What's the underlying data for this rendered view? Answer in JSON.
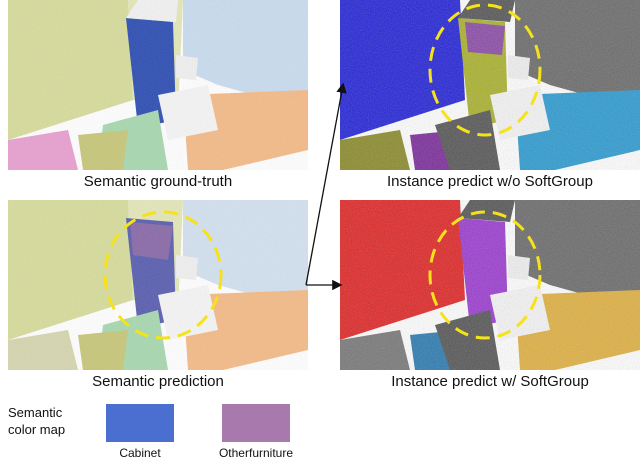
{
  "panels": [
    {
      "id": "gt",
      "caption": "Semantic ground-truth"
    },
    {
      "id": "pred",
      "caption": "Semantic prediction"
    },
    {
      "id": "inst_wo",
      "caption": "Instance predict w/o SoftGroup"
    },
    {
      "id": "inst_w",
      "caption": "Instance predict w/ SoftGroup"
    }
  ],
  "legend": {
    "title_line1": "Semantic",
    "title_line2": "color map",
    "items": [
      {
        "label": "Cabinet",
        "color": "#4a6fd0"
      },
      {
        "label": "Otherfurniture",
        "color": "#a779ac"
      }
    ]
  },
  "colors": {
    "highlight_circle": "#f5e21a",
    "arrow": "#111111"
  }
}
